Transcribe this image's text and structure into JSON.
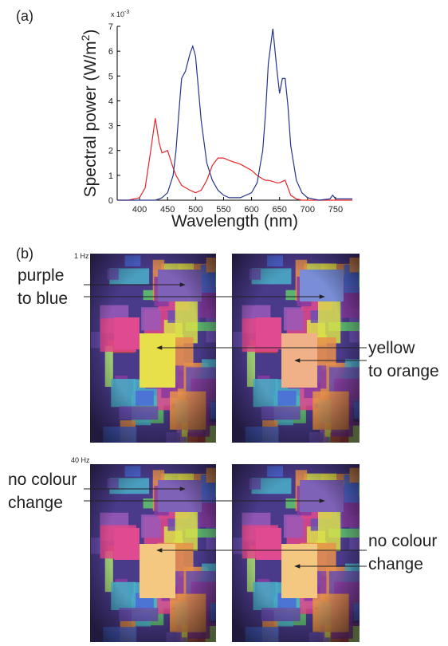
{
  "chart_data": {
    "type": "line",
    "panel_label": "(a)",
    "xlabel": "Wavelength (nm)",
    "ylabel": {
      "main": "Spectral power (W/m",
      "superscript": "2",
      "end": ")"
    },
    "y_scale_label": {
      "base": "x 10",
      "exponent": "-3"
    },
    "xlim": [
      360,
      780
    ],
    "ylim": [
      0,
      7
    ],
    "xticks": [
      400,
      450,
      500,
      550,
      600,
      650,
      700,
      750
    ],
    "yticks": [
      0,
      1,
      2,
      3,
      4,
      5,
      6,
      7
    ],
    "x": [
      360,
      380,
      400,
      410,
      420,
      428,
      435,
      440,
      450,
      460,
      465,
      470,
      475,
      482,
      490,
      495,
      500,
      510,
      520,
      530,
      540,
      550,
      560,
      580,
      600,
      610,
      620,
      625,
      630,
      638,
      645,
      650,
      655,
      660,
      665,
      670,
      680,
      690,
      700,
      720,
      740,
      745,
      750,
      780
    ],
    "series": [
      {
        "color": "#e8262a",
        "values": [
          0,
          0,
          0.1,
          0.5,
          2.0,
          3.3,
          2.3,
          1.9,
          2.0,
          1.3,
          1.0,
          0.8,
          0.6,
          0.5,
          0.4,
          0.35,
          0.3,
          0.4,
          0.8,
          1.4,
          1.7,
          1.7,
          1.6,
          1.45,
          1.2,
          1.0,
          0.85,
          0.8,
          0.8,
          0.75,
          0.7,
          0.7,
          0.75,
          0.8,
          0.5,
          0.2,
          0.05,
          0,
          0,
          0,
          0,
          0,
          0,
          0
        ]
      },
      {
        "color": "#27348b",
        "values": [
          0,
          0,
          0,
          0,
          0,
          0,
          0.05,
          0.1,
          0.3,
          1.0,
          2.0,
          3.5,
          4.9,
          5.2,
          5.9,
          6.2,
          5.8,
          3.2,
          1.5,
          0.8,
          0.4,
          0.2,
          0.1,
          0.1,
          0.3,
          0.7,
          2.0,
          3.5,
          5.5,
          6.9,
          5.3,
          4.3,
          4.9,
          4.9,
          3.8,
          2.2,
          0.8,
          0.3,
          0.1,
          0,
          0.05,
          0.2,
          0.05,
          0.05
        ]
      }
    ]
  },
  "panel_b": {
    "label": "(b)",
    "rows": [
      {
        "frequency": "1 Hz",
        "left_note": [
          "purple",
          "to blue"
        ],
        "right_note": [
          "yellow",
          "to orange"
        ]
      },
      {
        "frequency": "40 Hz",
        "left_note": [
          "no colour",
          "change"
        ],
        "right_note": [
          "no colour",
          "change"
        ]
      }
    ]
  }
}
